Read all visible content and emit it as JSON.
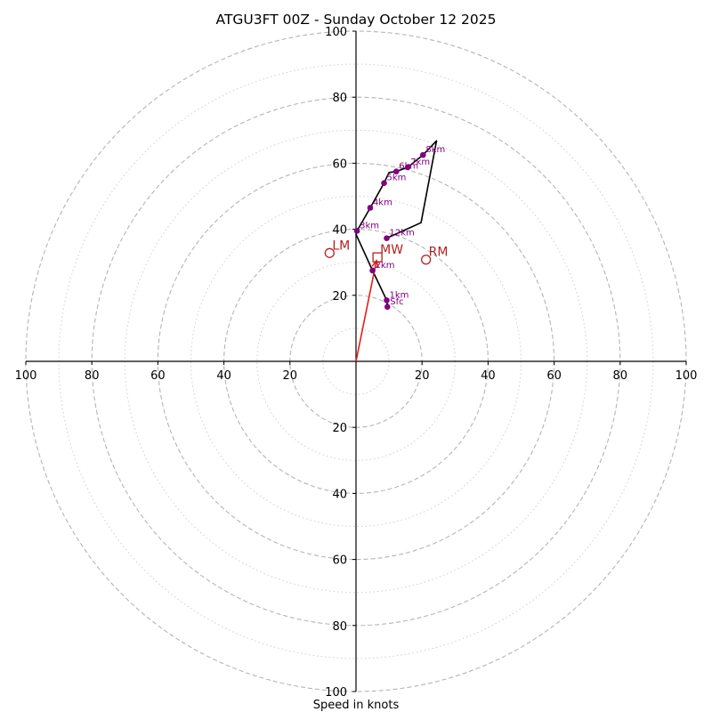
{
  "chart_data": {
    "type": "hodograph",
    "title": "ATGU3FT 00Z - Sunday October 12 2025",
    "xlabel": "Speed in knots",
    "max_speed": 100,
    "major_rings": [
      20,
      40,
      60,
      80,
      100
    ],
    "minor_rings": [
      10,
      30,
      50,
      70,
      90
    ],
    "tick_labels": {
      "left": [
        "100",
        "80",
        "60",
        "40",
        "20"
      ],
      "right": [
        "20",
        "40",
        "60",
        "80",
        "100"
      ],
      "top": [
        "20",
        "40",
        "60",
        "80",
        "100"
      ],
      "bottom": [
        "20",
        "40",
        "60",
        "80",
        "100"
      ]
    },
    "tick_values": [
      20,
      40,
      60,
      80,
      100
    ],
    "hodograph_path": [
      {
        "u": 9.5,
        "v": 16.5
      },
      {
        "u": 9.3,
        "v": 18.5
      },
      {
        "u": 5,
        "v": 27.5
      },
      {
        "u": 0,
        "v": 38.5
      },
      {
        "u": 0.3,
        "v": 39.5
      },
      {
        "u": 4.3,
        "v": 46.5
      },
      {
        "u": 8.5,
        "v": 54
      },
      {
        "u": 10,
        "v": 57.2
      },
      {
        "u": 12.2,
        "v": 57.5
      },
      {
        "u": 15.7,
        "v": 58.8
      },
      {
        "u": 20.3,
        "v": 62.5
      },
      {
        "u": 24.4,
        "v": 66.8
      },
      {
        "u": 19.7,
        "v": 42
      },
      {
        "u": 9.3,
        "v": 37.3
      }
    ],
    "height_points": [
      {
        "label": "Sfc",
        "u": 9.5,
        "v": 16.5
      },
      {
        "label": "1km",
        "u": 9.3,
        "v": 18.5
      },
      {
        "label": "2km",
        "u": 5,
        "v": 27.5
      },
      {
        "label": "3km",
        "u": 0.3,
        "v": 39.5
      },
      {
        "label": "4km",
        "u": 4.3,
        "v": 46.5
      },
      {
        "label": "5km",
        "u": 8.5,
        "v": 54
      },
      {
        "label": "6km",
        "u": 12.2,
        "v": 57.5
      },
      {
        "label": "7km",
        "u": 15.7,
        "v": 58.8
      },
      {
        "label": "8km",
        "u": 20.3,
        "v": 62.5
      },
      {
        "label": "12km",
        "u": 9.3,
        "v": 37.3
      }
    ],
    "storm_motion_vector": {
      "from": {
        "u": 0,
        "v": 0
      },
      "to": {
        "u": 6.2,
        "v": 30.5
      },
      "color": "#e0201c"
    },
    "storm_motions": [
      {
        "label": "MW",
        "marker": "square",
        "u": 6.5,
        "v": 31.5
      },
      {
        "label": "LM",
        "marker": "circle",
        "u": -8,
        "v": 32.8
      },
      {
        "label": "RM",
        "marker": "circle",
        "u": 21.2,
        "v": 30.8
      }
    ],
    "colors": {
      "hodograph_line": "#000000",
      "height_points": "#800080",
      "storm_markers": "#b22222",
      "major_ring": "#b5b5b5",
      "minor_ring": "#cfcfcf"
    }
  }
}
